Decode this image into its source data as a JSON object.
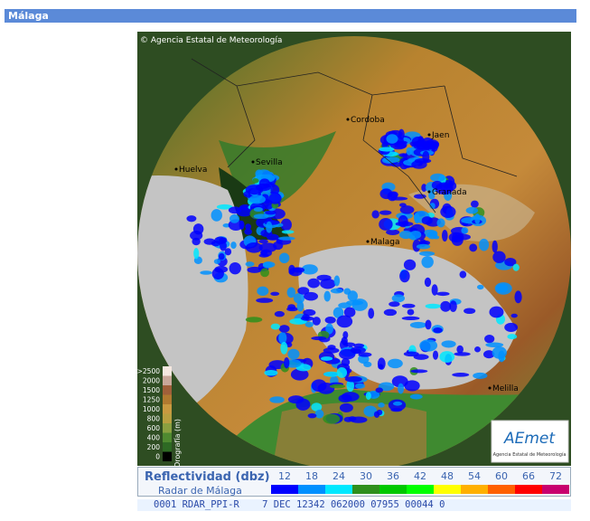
{
  "header": {
    "title": "Málaga"
  },
  "map": {
    "copyright": "Agencia Estatal de Meteorología",
    "cities": [
      "Cordoba",
      "Jaen",
      "Huelva",
      "Sevilla",
      "Granada",
      "Malaga",
      "Melilla"
    ],
    "orography": {
      "title": "Orografía (m)",
      "labels": [
        ">2500",
        2000,
        1500,
        1250,
        1000,
        800,
        600,
        400,
        200,
        0
      ]
    },
    "logo": {
      "name": "AEmet",
      "subtitle": "Agencia Estatal de Meteorología"
    }
  },
  "legend": {
    "title": "Reflectividad (dbz)",
    "subtitle": "Radar de Málaga",
    "items": [
      {
        "label": 12,
        "color": "#0000ff"
      },
      {
        "label": 18,
        "color": "#0090ff"
      },
      {
        "label": 24,
        "color": "#00e8ff"
      },
      {
        "label": 30,
        "color": "#2f8f1c"
      },
      {
        "label": 36,
        "color": "#00c800"
      },
      {
        "label": 42,
        "color": "#00ff00"
      },
      {
        "label": 48,
        "color": "#ffff00"
      },
      {
        "label": 54,
        "color": "#ffb000"
      },
      {
        "label": 60,
        "color": "#ff6000"
      },
      {
        "label": 66,
        "color": "#ff0000"
      },
      {
        "label": 72,
        "color": "#c8006e"
      }
    ]
  },
  "status": "0001 RDAR_PPI-R    7 DEC 12342 062000 07955 00044 0"
}
